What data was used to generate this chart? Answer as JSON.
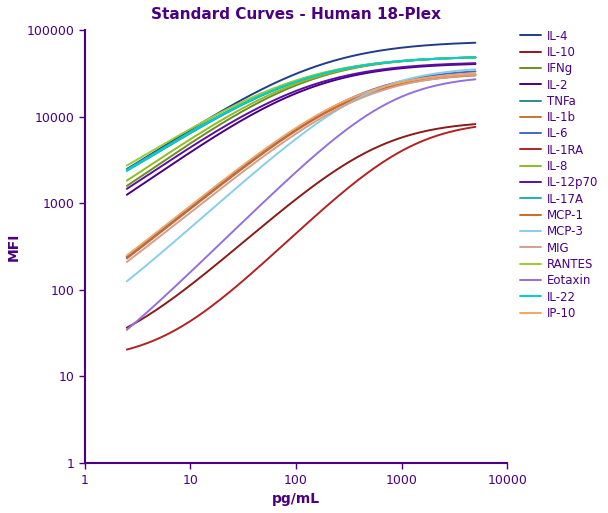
{
  "title": "Standard Curves - Human 18-Plex",
  "xlabel": "pg/mL",
  "ylabel": "MFI",
  "xlim": [
    1,
    10000
  ],
  "ylim": [
    1,
    100000
  ],
  "series": [
    {
      "label": "IL-4",
      "color": "#1f3d8c",
      "EC50": 150,
      "hill": 0.85,
      "bottom": 250,
      "top": 75000
    },
    {
      "label": "IL-10",
      "color": "#8b1a1a",
      "EC50": 600,
      "hill": 1.1,
      "bottom": 15,
      "top": 9000
    },
    {
      "label": "IFNg",
      "color": "#6b8e23",
      "EC50": 120,
      "hill": 0.9,
      "bottom": 100,
      "top": 50000
    },
    {
      "label": "IL-2",
      "color": "#4b0082",
      "EC50": 130,
      "hill": 0.9,
      "bottom": 90,
      "top": 42000
    },
    {
      "label": "TNFa",
      "color": "#2e8b8b",
      "EC50": 100,
      "hill": 0.85,
      "bottom": 300,
      "top": 50000
    },
    {
      "label": "IL-1b",
      "color": "#c07830",
      "EC50": 350,
      "hill": 1.0,
      "bottom": 15,
      "top": 32000
    },
    {
      "label": "IL-6",
      "color": "#4169cc",
      "EC50": 400,
      "hill": 1.0,
      "bottom": 15,
      "top": 36000
    },
    {
      "label": "IL-1RA",
      "color": "#b22222",
      "EC50": 1200,
      "hill": 1.2,
      "bottom": 15,
      "top": 9000
    },
    {
      "label": "IL-8",
      "color": "#8fbc20",
      "EC50": 110,
      "hill": 0.88,
      "bottom": 100,
      "top": 50000
    },
    {
      "label": "IL-12p70",
      "color": "#5b0ea6",
      "EC50": 120,
      "hill": 0.88,
      "bottom": 90,
      "top": 43000
    },
    {
      "label": "IL-17A",
      "color": "#20b2aa",
      "EC50": 95,
      "hill": 0.85,
      "bottom": 290,
      "top": 50000
    },
    {
      "label": "MCP-1",
      "color": "#d2691e",
      "EC50": 380,
      "hill": 1.0,
      "bottom": 15,
      "top": 33000
    },
    {
      "label": "MCP-3",
      "color": "#87ceeb",
      "EC50": 500,
      "hill": 1.1,
      "bottom": 14,
      "top": 38000
    },
    {
      "label": "MIG",
      "color": "#d2a090",
      "EC50": 420,
      "hill": 1.0,
      "bottom": 15,
      "top": 33000
    },
    {
      "label": "RANTES",
      "color": "#9acd32",
      "EC50": 90,
      "hill": 0.83,
      "bottom": 310,
      "top": 50000
    },
    {
      "label": "Eotaxin",
      "color": "#9370db",
      "EC50": 800,
      "hill": 1.2,
      "bottom": 5,
      "top": 30000
    },
    {
      "label": "IL-22",
      "color": "#00ced1",
      "EC50": 98,
      "hill": 0.85,
      "bottom": 285,
      "top": 50000
    },
    {
      "label": "IP-10",
      "color": "#f4a460",
      "EC50": 360,
      "hill": 1.0,
      "bottom": 15,
      "top": 34000
    }
  ],
  "spine_color": "#4b0082",
  "text_color": "#4b0082",
  "background_color": "#ffffff",
  "title_fontsize": 11,
  "axis_label_fontsize": 10,
  "tick_fontsize": 9,
  "legend_fontsize": 8.5,
  "linewidth": 1.4
}
